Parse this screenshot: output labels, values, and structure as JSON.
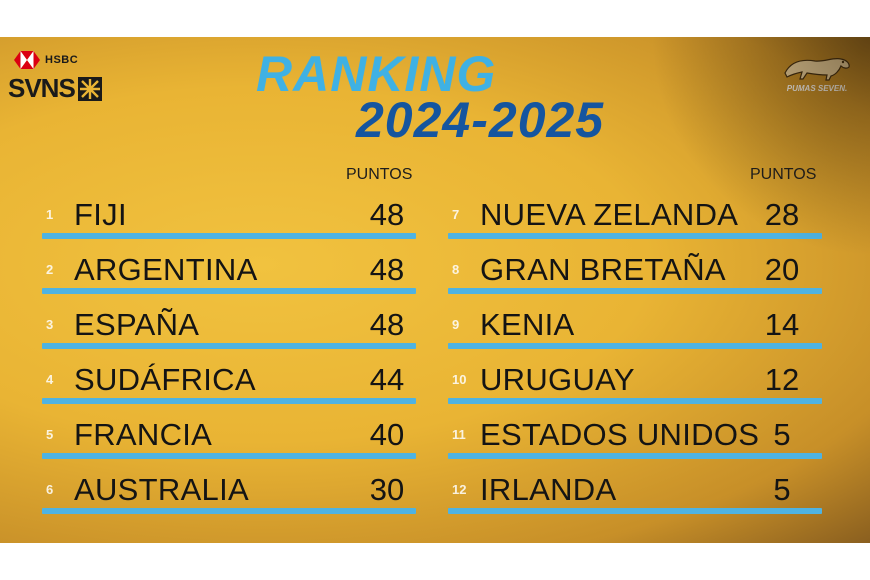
{
  "brand": {
    "sponsor": "HSBC",
    "series": "SVNS",
    "team_logo_text": "PUMAS SEVEN."
  },
  "title": {
    "line1": "RANKING",
    "line2": "2024-2025"
  },
  "points_header": "PUNTOS",
  "colors": {
    "accent_light": "#3fb1e4",
    "accent_dark": "#15559f",
    "background": "#e9b434"
  },
  "left": [
    {
      "rank": "1",
      "team": "FIJI",
      "points": "48"
    },
    {
      "rank": "2",
      "team": "ARGENTINA",
      "points": "48"
    },
    {
      "rank": "3",
      "team": "ESPAÑA",
      "points": "48"
    },
    {
      "rank": "4",
      "team": "SUDÁFRICA",
      "points": "44"
    },
    {
      "rank": "5",
      "team": "FRANCIA",
      "points": "40"
    },
    {
      "rank": "6",
      "team": "AUSTRALIA",
      "points": "30"
    }
  ],
  "right": [
    {
      "rank": "7",
      "team": "NUEVA ZELANDA",
      "points": "28"
    },
    {
      "rank": "8",
      "team": "GRAN BRETAÑA",
      "points": "20"
    },
    {
      "rank": "9",
      "team": "KENIA",
      "points": "14"
    },
    {
      "rank": "10",
      "team": "URUGUAY",
      "points": "12"
    },
    {
      "rank": "11",
      "team": "ESTADOS UNIDOS",
      "points": "5"
    },
    {
      "rank": "12",
      "team": "IRLANDA",
      "points": "5"
    }
  ]
}
